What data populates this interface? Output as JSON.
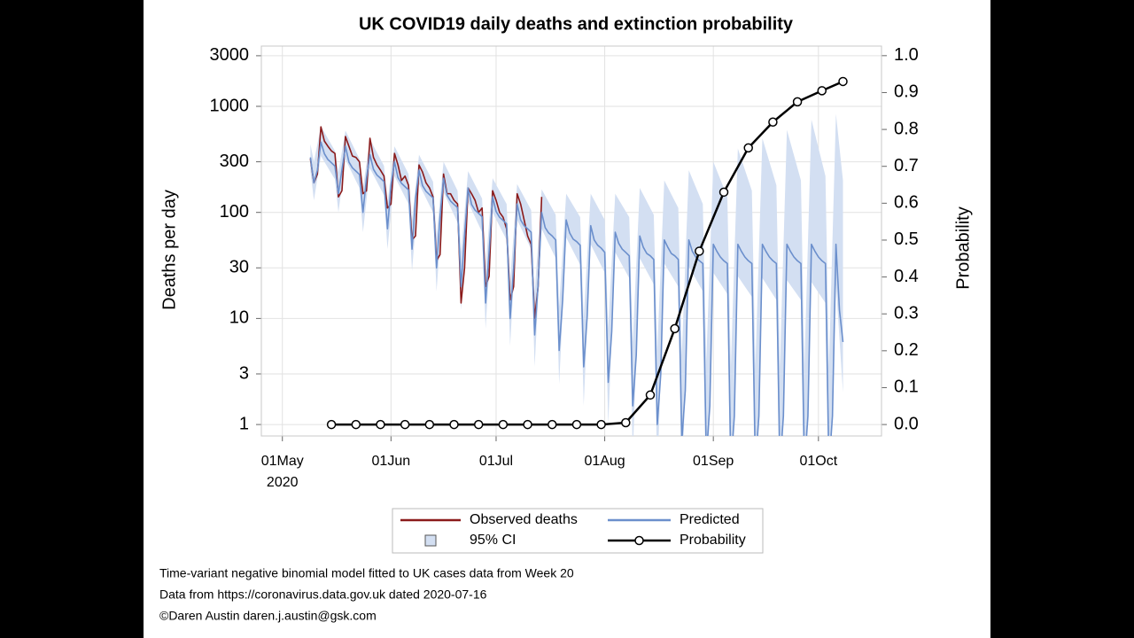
{
  "chart_data": {
    "type": "line",
    "title": "UK COVID19 daily deaths and extinction probability",
    "y_label": "Deaths per day",
    "y2_label": "Probability",
    "x": [
      "2020-05-09",
      "2020-05-10",
      "2020-05-11",
      "2020-05-12",
      "2020-05-13",
      "2020-05-14",
      "2020-05-15",
      "2020-05-16",
      "2020-05-17",
      "2020-05-18",
      "2020-05-19",
      "2020-05-20",
      "2020-05-21",
      "2020-05-22",
      "2020-05-23",
      "2020-05-24",
      "2020-05-25",
      "2020-05-26",
      "2020-05-27",
      "2020-05-28",
      "2020-05-29",
      "2020-05-30",
      "2020-05-31",
      "2020-06-01",
      "2020-06-02",
      "2020-06-03",
      "2020-06-04",
      "2020-06-05",
      "2020-06-06",
      "2020-06-07",
      "2020-06-08",
      "2020-06-09",
      "2020-06-10",
      "2020-06-11",
      "2020-06-12",
      "2020-06-13",
      "2020-06-14",
      "2020-06-15",
      "2020-06-16",
      "2020-06-17",
      "2020-06-18",
      "2020-06-19",
      "2020-06-20",
      "2020-06-21",
      "2020-06-22",
      "2020-06-23",
      "2020-06-24",
      "2020-06-25",
      "2020-06-26",
      "2020-06-27",
      "2020-06-28",
      "2020-06-29",
      "2020-06-30",
      "2020-07-01",
      "2020-07-02",
      "2020-07-03",
      "2020-07-04",
      "2020-07-05",
      "2020-07-06",
      "2020-07-07",
      "2020-07-08",
      "2020-07-09",
      "2020-07-10",
      "2020-07-11",
      "2020-07-12",
      "2020-07-13",
      "2020-07-14",
      "2020-07-15",
      "2020-07-16",
      "2020-07-17",
      "2020-07-18",
      "2020-07-19",
      "2020-07-20",
      "2020-07-21",
      "2020-07-22",
      "2020-07-23",
      "2020-07-24",
      "2020-07-25",
      "2020-07-26",
      "2020-07-27",
      "2020-07-28",
      "2020-07-29",
      "2020-07-30",
      "2020-07-31",
      "2020-08-01",
      "2020-08-02",
      "2020-08-03",
      "2020-08-04",
      "2020-08-05",
      "2020-08-06",
      "2020-08-07",
      "2020-08-08",
      "2020-08-09",
      "2020-08-10",
      "2020-08-11",
      "2020-08-12",
      "2020-08-13",
      "2020-08-14",
      "2020-08-15",
      "2020-08-16",
      "2020-08-17",
      "2020-08-18",
      "2020-08-19",
      "2020-08-20",
      "2020-08-21",
      "2020-08-22",
      "2020-08-23",
      "2020-08-24",
      "2020-08-25",
      "2020-08-26",
      "2020-08-27",
      "2020-08-28",
      "2020-08-29",
      "2020-08-30",
      "2020-08-31",
      "2020-09-01",
      "2020-09-02",
      "2020-09-03",
      "2020-09-04",
      "2020-09-05",
      "2020-09-06",
      "2020-09-07",
      "2020-09-08",
      "2020-09-09",
      "2020-09-10",
      "2020-09-11",
      "2020-09-12",
      "2020-09-13",
      "2020-09-14",
      "2020-09-15",
      "2020-09-16",
      "2020-09-17",
      "2020-09-18",
      "2020-09-19",
      "2020-09-20",
      "2020-09-21",
      "2020-09-22",
      "2020-09-23",
      "2020-09-24",
      "2020-09-25",
      "2020-09-26",
      "2020-09-27",
      "2020-09-28",
      "2020-09-29",
      "2020-09-30",
      "2020-10-01",
      "2020-10-02",
      "2020-10-03",
      "2020-10-04",
      "2020-10-05",
      "2020-10-06",
      "2020-10-07",
      "2020-10-08"
    ],
    "xlim": [
      "2020-04-25",
      "2020-10-19"
    ],
    "xticks": [
      {
        "value": "2020-05-01",
        "label": "01May"
      },
      {
        "value": "2020-06-01",
        "label": "01Jun"
      },
      {
        "value": "2020-07-01",
        "label": "01Jul"
      },
      {
        "value": "2020-08-01",
        "label": "01Aug"
      },
      {
        "value": "2020-09-01",
        "label": "01Sep"
      },
      {
        "value": "2020-10-01",
        "label": "01Oct"
      }
    ],
    "x_year_label": "2020",
    "log_y": true,
    "ylim": [
      0.78,
      3700
    ],
    "yticks": [
      1,
      3,
      10,
      30,
      100,
      300,
      1000,
      3000
    ],
    "y2lim": [
      -0.031,
      1.026
    ],
    "y2ticks": [
      {
        "value": 0,
        "label": "0.0"
      },
      0.1,
      0.2,
      0.3,
      0.4,
      0.5,
      0.6,
      0.7,
      0.8,
      0.9,
      {
        "value": 1,
        "label": "1.0"
      }
    ],
    "grid": true,
    "legend": "bottom",
    "series": [
      {
        "name": "Observed deaths",
        "color": "#8b1a1a",
        "values": [
          320,
          190,
          230,
          640,
          470,
          420,
          380,
          360,
          140,
          160,
          520,
          420,
          340,
          330,
          300,
          150,
          160,
          500,
          330,
          280,
          250,
          220,
          110,
          120,
          360,
          280,
          200,
          220,
          180,
          55,
          60,
          280,
          240,
          190,
          170,
          140,
          35,
          40,
          230,
          150,
          150,
          130,
          120,
          14,
          30,
          170,
          150,
          130,
          100,
          110,
          20,
          25,
          160,
          130,
          100,
          90,
          70,
          15,
          20,
          150,
          120,
          85,
          60,
          50,
          10,
          20,
          140,
          null,
          null,
          null,
          null,
          null,
          null,
          null,
          null,
          null,
          null,
          null,
          null,
          null,
          null,
          null,
          null,
          null,
          null,
          null,
          null,
          null,
          null,
          null,
          null,
          null,
          null,
          null,
          null,
          null,
          null,
          null,
          null,
          null,
          null,
          null,
          null,
          null,
          null,
          null,
          null,
          null,
          null,
          null,
          null,
          null,
          null,
          null,
          null,
          null,
          null,
          null,
          null,
          null,
          null,
          null,
          null,
          null,
          null,
          null,
          null,
          null,
          null,
          null,
          null,
          null,
          null,
          null,
          null,
          null,
          null,
          null,
          null,
          null,
          null,
          null,
          null,
          null,
          null,
          null,
          null,
          null,
          null,
          null,
          null,
          null,
          null
        ]
      },
      {
        "name": "Predicted",
        "color": "#6b8fcc",
        "values": [
          330,
          190,
          250,
          460,
          357,
          315,
          294,
          273,
          150,
          252,
          420,
          298,
          263,
          245,
          228,
          100,
          210,
          350,
          255,
          225,
          210,
          195,
          70,
          180,
          300,
          213,
          188,
          175,
          163,
          45,
          135,
          250,
          179,
          158,
          147,
          137,
          30,
          90,
          210,
          145,
          128,
          119,
          111,
          20,
          60,
          170,
          119,
          105,
          98,
          91,
          14,
          42,
          140,
          102,
          90,
          84,
          78,
          10,
          30,
          120,
          85,
          75,
          70,
          65,
          7,
          21,
          100,
          72,
          64,
          60,
          55,
          5,
          15,
          85,
          64,
          56,
          53,
          49,
          3.5,
          10.5,
          75,
          55,
          49,
          46,
          42,
          2.5,
          7.5,
          65,
          51,
          45,
          42,
          39,
          1.5,
          4.5,
          60,
          47,
          41,
          39,
          36,
          1,
          3,
          55,
          47,
          41,
          39,
          36,
          0.7,
          2.1,
          55,
          43,
          38,
          35,
          33,
          0.5,
          1.5,
          50,
          43,
          38,
          35,
          33,
          0.4,
          1.2,
          50,
          43,
          38,
          35,
          33,
          0.4,
          1.2,
          50,
          43,
          38,
          35,
          33,
          0.4,
          1.2,
          50,
          43,
          38,
          35,
          33,
          0.4,
          1.2,
          50,
          43,
          38,
          35,
          33,
          0.4,
          1.2,
          50,
          12,
          6
        ]
      },
      {
        "name": "95% CI",
        "color": "#d3dff2",
        "x": [
          "2020-05-09",
          "2020-05-10",
          "2020-05-12",
          "2020-05-16",
          "2020-05-17",
          "2020-05-19",
          "2020-05-23",
          "2020-05-24",
          "2020-05-26",
          "2020-05-30",
          "2020-05-31",
          "2020-06-02",
          "2020-06-06",
          "2020-06-07",
          "2020-06-09",
          "2020-06-13",
          "2020-06-14",
          "2020-06-16",
          "2020-06-20",
          "2020-06-21",
          "2020-06-23",
          "2020-06-27",
          "2020-06-28",
          "2020-06-30",
          "2020-07-04",
          "2020-07-05",
          "2020-07-07",
          "2020-07-11",
          "2020-07-12",
          "2020-07-14",
          "2020-07-18",
          "2020-07-19",
          "2020-07-21",
          "2020-07-25",
          "2020-07-26",
          "2020-07-28",
          "2020-08-01",
          "2020-08-02",
          "2020-08-04",
          "2020-08-08",
          "2020-08-09",
          "2020-08-11",
          "2020-08-15",
          "2020-08-16",
          "2020-08-18",
          "2020-08-22",
          "2020-08-23",
          "2020-08-25",
          "2020-08-29",
          "2020-08-30",
          "2020-09-01",
          "2020-09-05",
          "2020-09-06",
          "2020-09-08",
          "2020-09-12",
          "2020-09-13",
          "2020-09-15",
          "2020-09-19",
          "2020-09-20",
          "2020-09-22",
          "2020-09-26",
          "2020-09-27",
          "2020-09-29",
          "2020-10-03",
          "2020-10-04",
          "2020-10-06",
          "2020-10-08"
        ],
        "lower": [
          250,
          130,
          340,
          205,
          100,
          315,
          170,
          65,
          260,
          145,
          45,
          220,
          120,
          28,
          185,
          100,
          18,
          155,
          80,
          12,
          125,
          65,
          8,
          100,
          55,
          5.5,
          85,
          45,
          3.5,
          70,
          37,
          2.4,
          58,
          32,
          1.5,
          50,
          27,
          1,
          42,
          24,
          0.5,
          37,
          21,
          0.3,
          33,
          20,
          0.2,
          31,
          18,
          0.1,
          27,
          17,
          0.1,
          25,
          16,
          0.1,
          24,
          15,
          0.1,
          23,
          15,
          0.1,
          22,
          14,
          0.1,
          21,
          2
        ],
        "upper": [
          440,
          300,
          650,
          380,
          240,
          590,
          320,
          170,
          490,
          275,
          125,
          420,
          230,
          85,
          350,
          195,
          60,
          300,
          160,
          42,
          245,
          135,
          30,
          210,
          120,
          22,
          185,
          105,
          17,
          165,
          95,
          13,
          150,
          90,
          10,
          150,
          85,
          8,
          150,
          90,
          6,
          170,
          95,
          5,
          200,
          110,
          4.5,
          250,
          120,
          4,
          300,
          140,
          3.5,
          400,
          160,
          3.5,
          500,
          180,
          3.5,
          600,
          200,
          3.5,
          750,
          220,
          3.5,
          850,
          200
        ]
      },
      {
        "name": "Probability",
        "color": "#000000",
        "axis": "y2",
        "marker": "circle",
        "x": [
          "2020-05-15",
          "2020-05-22",
          "2020-05-29",
          "2020-06-05",
          "2020-06-12",
          "2020-06-19",
          "2020-06-26",
          "2020-07-03",
          "2020-07-10",
          "2020-07-17",
          "2020-07-24",
          "2020-07-31",
          "2020-08-07",
          "2020-08-14",
          "2020-08-21",
          "2020-08-28",
          "2020-09-04",
          "2020-09-11",
          "2020-09-18",
          "2020-09-25",
          "2020-10-02",
          "2020-10-08"
        ],
        "values": [
          0,
          0,
          0,
          0,
          0,
          0,
          0,
          0,
          0,
          0,
          0,
          0,
          0.005,
          0.08,
          0.26,
          0.47,
          0.63,
          0.75,
          0.82,
          0.875,
          0.905,
          0.93
        ]
      }
    ]
  },
  "notes": [
    "Time-variant negative binomial model fitted to UK cases data from Week 20",
    "Data from https://coronavirus.data.gov.uk dated 2020-07-16",
    "©Daren Austin daren.j.austin@gsk.com"
  ]
}
